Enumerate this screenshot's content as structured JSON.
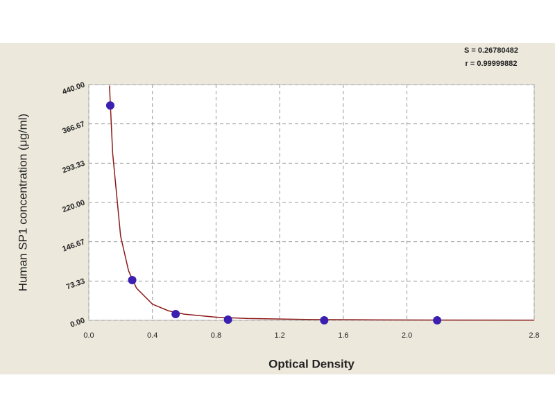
{
  "chart_data": {
    "type": "scatter",
    "xlabel": "Optical Density",
    "ylabel": "Human  SP1 concentration (μg/ml)",
    "annotations": [
      "S = 0.26780482",
      "r = 0.99999882"
    ],
    "xlim": [
      0,
      2.8
    ],
    "ylim": [
      0,
      440
    ],
    "xticks": [
      {
        "value": 0,
        "label": "0.0"
      },
      0.4,
      0.8,
      1.2,
      1.6,
      {
        "value": 2,
        "label": "2.0"
      },
      2.8
    ],
    "yticks": [
      {
        "value": 0,
        "label": "0.00"
      },
      {
        "value": 73.33,
        "label": "73.33"
      },
      {
        "value": 146.67,
        "label": "146.67"
      },
      {
        "value": 220,
        "label": "220.00"
      },
      {
        "value": 293.33,
        "label": "293.33"
      },
      {
        "value": 366.67,
        "label": "366.67"
      },
      {
        "value": 440,
        "label": "440.00"
      }
    ],
    "grid": true,
    "series": [
      {
        "color": "#3a1fb0",
        "x": [
          0.135,
          0.273,
          0.546,
          0.875,
          1.48,
          2.19
        ],
        "values": [
          401,
          75,
          11.6,
          1.3,
          0,
          0
        ]
      },
      {
        "color": "#8b1a1a",
        "x": [
          0.13,
          0.15,
          0.2,
          0.25,
          0.3,
          0.4,
          0.5,
          0.6,
          0.8,
          1.0,
          1.4,
          1.8,
          2.2,
          2.8
        ],
        "values": [
          438,
          312,
          157,
          92.4,
          60,
          30.2,
          17.8,
          11.5,
          5.8,
          3.41,
          1.53,
          0.84,
          0.52,
          0.29
        ]
      }
    ]
  }
}
